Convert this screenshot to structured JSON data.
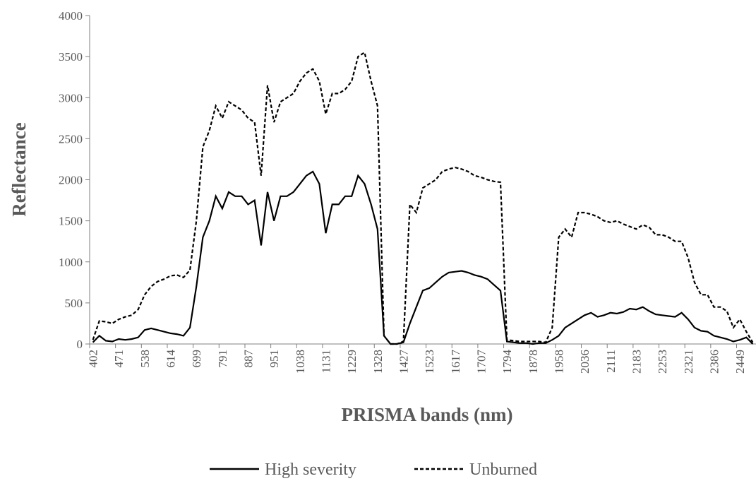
{
  "chart_data": {
    "type": "line",
    "x_label": "PRISMA bands (nm)",
    "y_label": "Reflectance",
    "categories": [
      "402",
      null,
      null,
      null,
      "471",
      null,
      null,
      null,
      "538",
      null,
      null,
      null,
      "614",
      null,
      null,
      null,
      "699",
      null,
      null,
      null,
      "791",
      null,
      null,
      null,
      "887",
      null,
      null,
      null,
      "951",
      null,
      null,
      null,
      "1038",
      null,
      null,
      null,
      "1131",
      null,
      null,
      null,
      "1229",
      null,
      null,
      null,
      "1328",
      null,
      null,
      null,
      "1427",
      null,
      null,
      null,
      "1523",
      null,
      null,
      null,
      "1617",
      null,
      null,
      null,
      "1707",
      null,
      null,
      null,
      "1794",
      null,
      null,
      null,
      "1878",
      null,
      null,
      null,
      "1958",
      null,
      null,
      null,
      "2036",
      null,
      null,
      null,
      "2111",
      null,
      null,
      null,
      "2183",
      null,
      null,
      null,
      "2253",
      null,
      null,
      null,
      "2321",
      null,
      null,
      null,
      "2386",
      null,
      null,
      null,
      "2449",
      null,
      null
    ],
    "series": [
      {
        "name": "High severity",
        "color": "#000000",
        "dash": "solid",
        "values": [
          20,
          100,
          40,
          30,
          60,
          50,
          60,
          80,
          170,
          190,
          170,
          150,
          130,
          120,
          100,
          200,
          700,
          1300,
          1500,
          1800,
          1650,
          1850,
          1800,
          1800,
          1700,
          1750,
          1200,
          1850,
          1500,
          1800,
          1800,
          1850,
          1950,
          2050,
          2100,
          1950,
          1350,
          1700,
          1700,
          1800,
          1800,
          2050,
          1950,
          1700,
          1400,
          100,
          0,
          0,
          20,
          250,
          450,
          650,
          680,
          750,
          820,
          870,
          880,
          890,
          870,
          840,
          820,
          790,
          720,
          650,
          30,
          20,
          10,
          10,
          0,
          10,
          10,
          50,
          100,
          200,
          250,
          300,
          350,
          380,
          330,
          350,
          380,
          370,
          390,
          430,
          420,
          450,
          400,
          360,
          350,
          340,
          330,
          380,
          300,
          200,
          160,
          150,
          100,
          80,
          60,
          30,
          50,
          80,
          0
        ]
      },
      {
        "name": "Unburned",
        "color": "#000000",
        "dash": "dashed",
        "values": [
          50,
          280,
          270,
          250,
          300,
          330,
          350,
          420,
          600,
          700,
          760,
          790,
          830,
          840,
          810,
          900,
          1500,
          2400,
          2600,
          2900,
          2750,
          2950,
          2900,
          2850,
          2750,
          2700,
          2050,
          3150,
          2700,
          2950,
          3000,
          3050,
          3200,
          3300,
          3350,
          3200,
          2800,
          3050,
          3050,
          3100,
          3200,
          3500,
          3550,
          3200,
          2900,
          100,
          0,
          0,
          30,
          1700,
          1600,
          1900,
          1950,
          2000,
          2100,
          2130,
          2150,
          2130,
          2100,
          2050,
          2030,
          2000,
          1980,
          1970,
          50,
          40,
          30,
          30,
          30,
          30,
          20,
          200,
          1300,
          1400,
          1300,
          1600,
          1600,
          1580,
          1550,
          1500,
          1480,
          1500,
          1460,
          1430,
          1400,
          1450,
          1420,
          1330,
          1330,
          1300,
          1250,
          1250,
          1050,
          750,
          600,
          600,
          450,
          450,
          400,
          200,
          300,
          150,
          20
        ]
      }
    ],
    "ylim": [
      0,
      4000
    ],
    "yticks": [
      0,
      500,
      1000,
      1500,
      2000,
      2500,
      3000,
      3500,
      4000
    ],
    "grid": false,
    "legend": "bottom"
  }
}
